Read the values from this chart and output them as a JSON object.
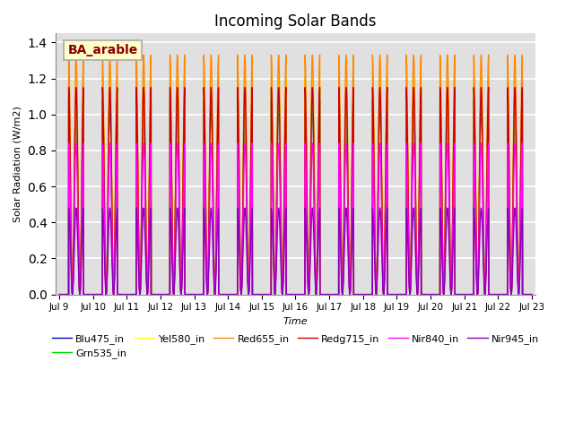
{
  "title": "Incoming Solar Bands",
  "xlabel": "Time",
  "ylabel": "Solar Radiation (W/m2)",
  "annotation_text": "BA_arable",
  "ylim": [
    0,
    1.45
  ],
  "background_color": "#e0e0e0",
  "grid_color": "white",
  "series": [
    {
      "label": "Blu475_in",
      "color": "#0000cc",
      "peak": 1.08,
      "lw": 1.0
    },
    {
      "label": "Grn535_in",
      "color": "#00dd00",
      "peak": 1.14,
      "lw": 1.0
    },
    {
      "label": "Yel580_in",
      "color": "#ffff00",
      "peak": 1.2,
      "lw": 1.0
    },
    {
      "label": "Red655_in",
      "color": "#ff8800",
      "peak": 1.33,
      "lw": 1.0
    },
    {
      "label": "Redg715_in",
      "color": "#cc0000",
      "peak": 1.15,
      "lw": 1.0
    },
    {
      "label": "Nir840_in",
      "color": "#ff00ff",
      "peak": 0.84,
      "lw": 1.0
    },
    {
      "label": "Nir945_in",
      "color": "#8800bb",
      "peak": 0.48,
      "lw": 1.0
    }
  ],
  "x_tick_labels": [
    "Jul 9",
    "Jul 10",
    "Jul 11",
    "Jul 12",
    "Jul 13",
    "Jul 14",
    "Jul 15",
    "Jul 16",
    "Jul 17",
    "Jul 18",
    "Jul 19",
    "Jul 20",
    "Jul 21",
    "Jul 22",
    "Jul 23"
  ],
  "days": 14,
  "points_per_day": 500
}
